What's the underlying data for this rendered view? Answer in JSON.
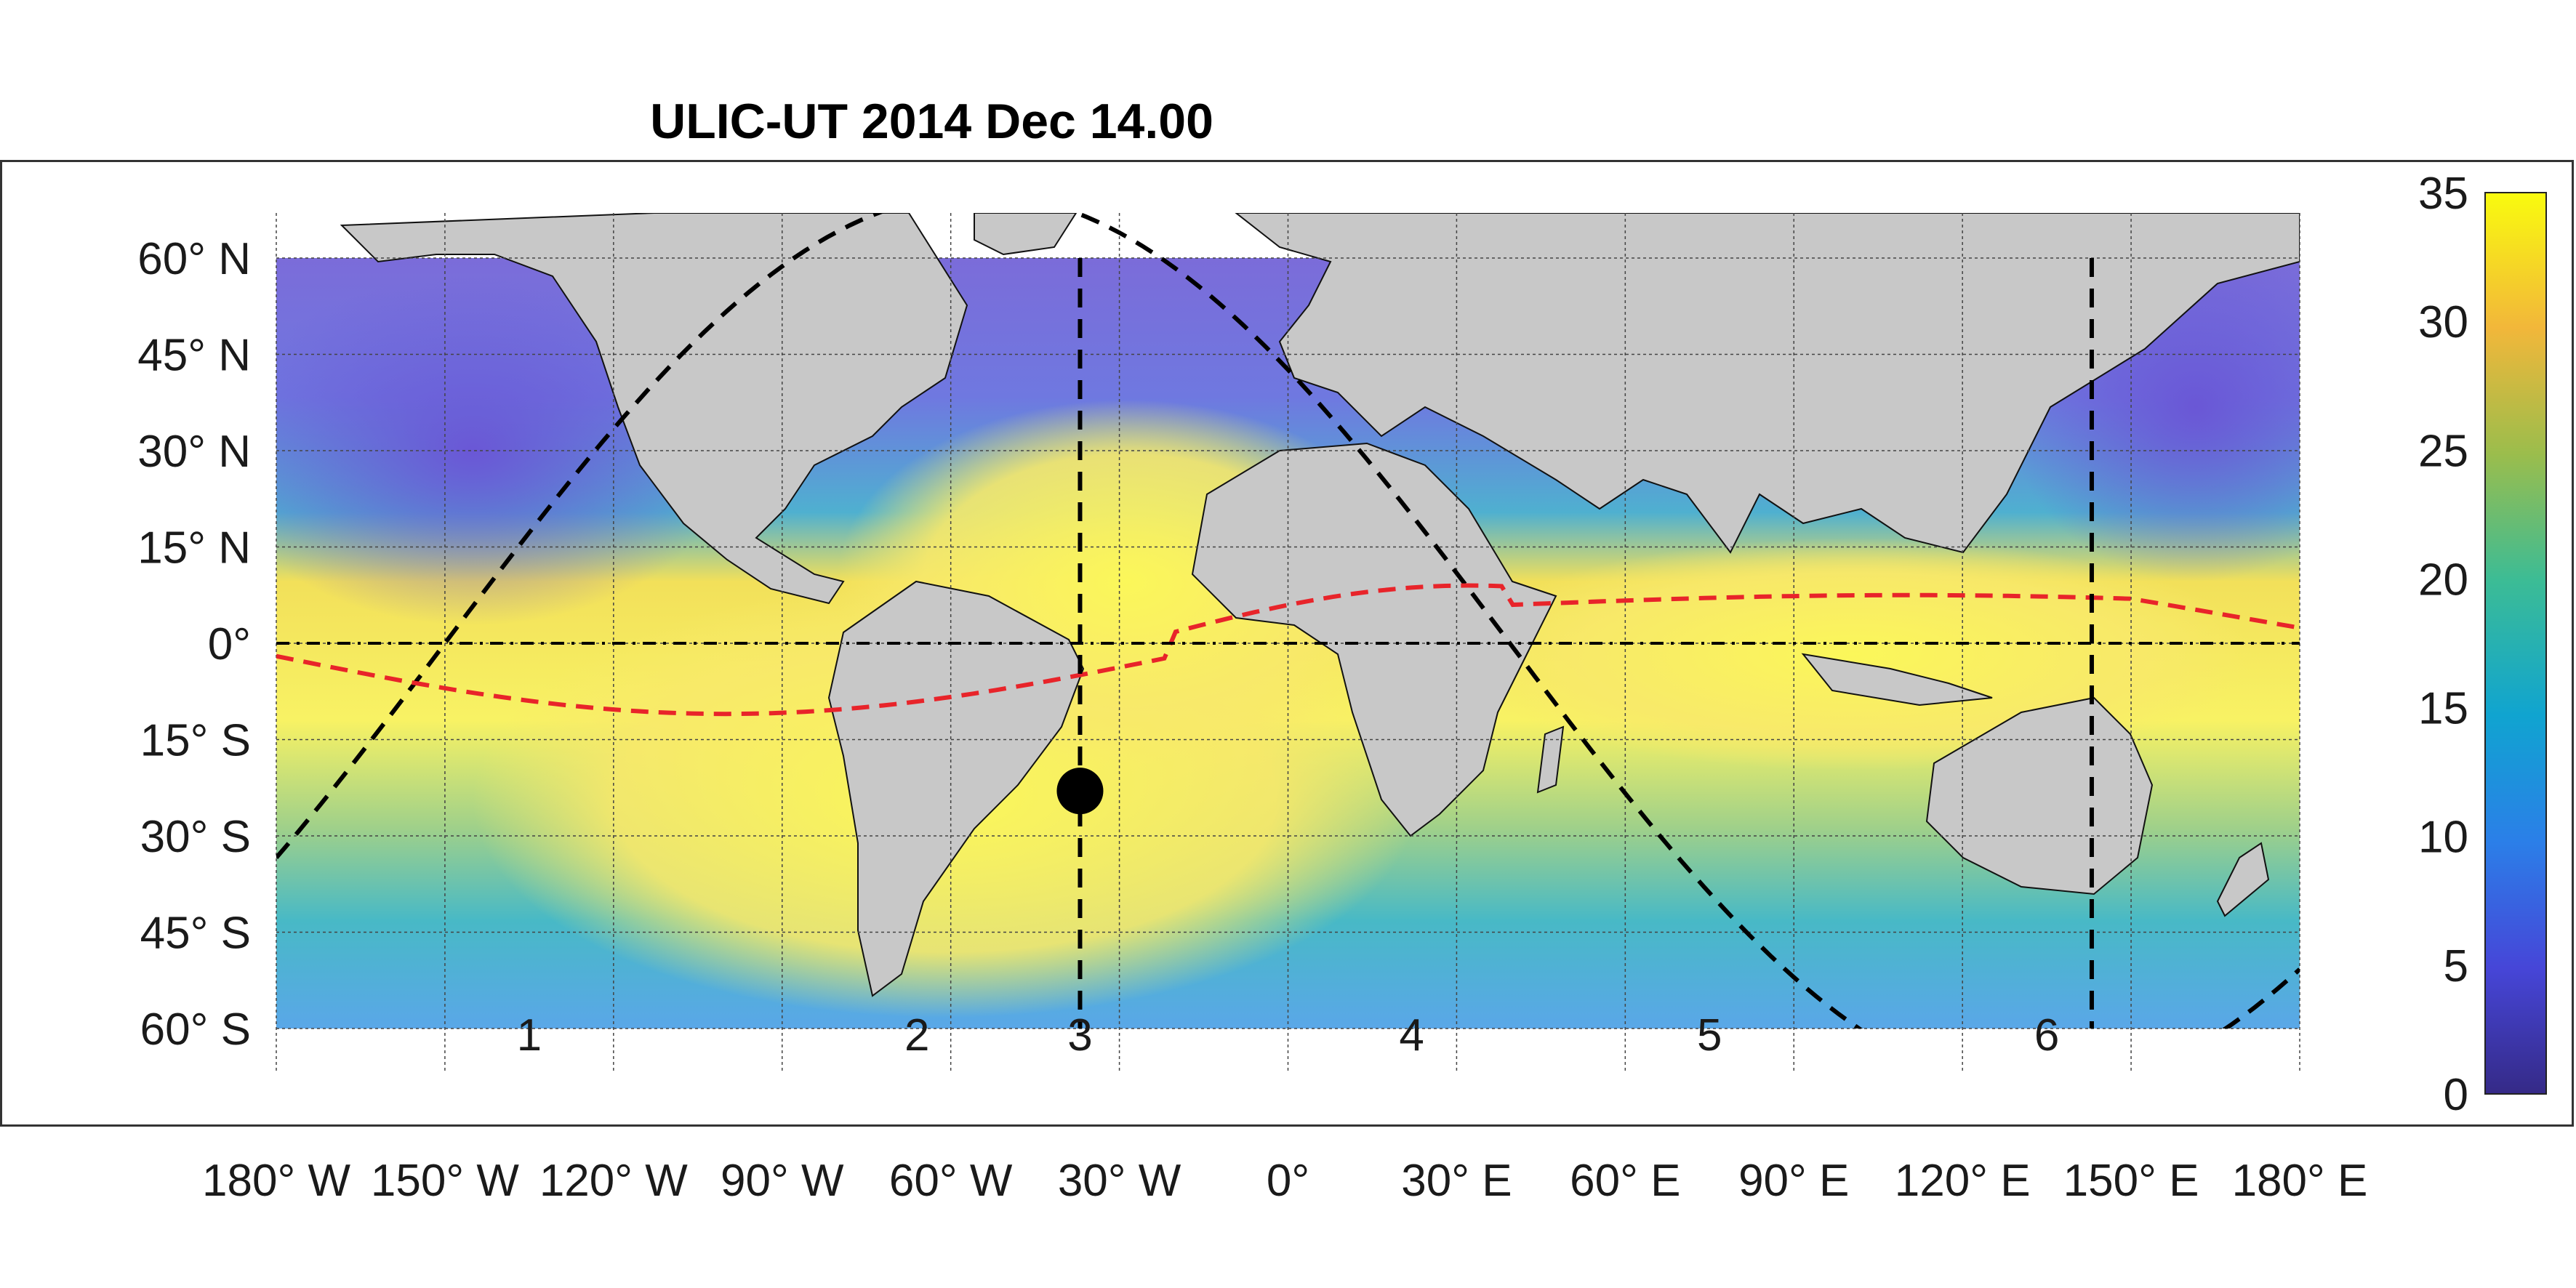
{
  "title": "ULIC-UT 2014 Dec 14.00",
  "map": {
    "projection": "equirectangular",
    "lon_range": [
      -180,
      180
    ],
    "lat_range": [
      -60,
      60
    ],
    "grid": true,
    "lat_labels": [
      "60° N",
      "45° N",
      "30° N",
      "15° N",
      "0°",
      "15° S",
      "30° S",
      "45° S",
      "60° S"
    ],
    "lon_labels": [
      "180° W",
      "150° W",
      "120° W",
      "90° W",
      "60° W",
      "30° W",
      "0°",
      "30° E",
      "60° E",
      "90° E",
      "120° E",
      "150° E",
      "180° E"
    ],
    "region_labels": [
      "1",
      "2",
      "3",
      "4",
      "5",
      "6"
    ],
    "marker": {
      "lon": -37,
      "lat": -23
    },
    "meridian_lines_lon": [
      -37,
      143
    ],
    "colors": {
      "land": "#c8c8c8",
      "equator_line": "#000000",
      "red_line": "#e8242a",
      "marker": "#000000"
    }
  },
  "colorbar": {
    "min": 0,
    "max": 35,
    "tick_labels": [
      "35",
      "30",
      "25",
      "20",
      "15",
      "10",
      "5",
      "0"
    ],
    "colormap": "parula"
  }
}
